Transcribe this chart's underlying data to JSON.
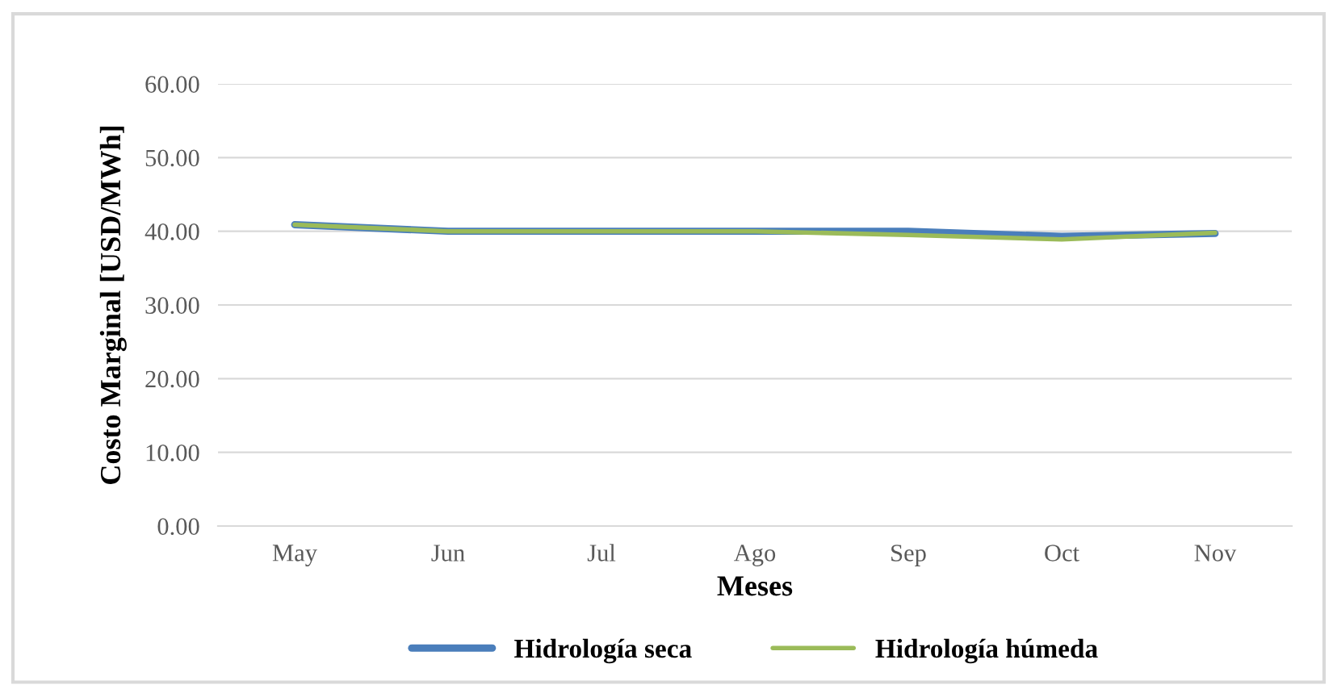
{
  "chart_data": {
    "type": "line",
    "xlabel": "Meses",
    "ylabel": "Costo Marginal [USD/MWh]",
    "categories": [
      "May",
      "Jun",
      "Jul",
      "Ago",
      "Sep",
      "Oct",
      "Nov"
    ],
    "series": [
      {
        "name": "Hidrología seca",
        "color": "#4a7ebb",
        "values": [
          40.9,
          40.0,
          40.0,
          40.0,
          40.0,
          39.3,
          39.7
        ]
      },
      {
        "name": "Hidrología húmeda",
        "color": "#9bbb59",
        "values": [
          40.9,
          40.0,
          40.0,
          40.0,
          39.5,
          38.9,
          39.8
        ]
      }
    ],
    "ylim": [
      0,
      60
    ],
    "yticks": [
      {
        "value": 0,
        "label": "0.00"
      },
      {
        "value": 10,
        "label": "10.00"
      },
      {
        "value": 20,
        "label": "20.00"
      },
      {
        "value": 30,
        "label": "30.00"
      },
      {
        "value": 40,
        "label": "40.00"
      },
      {
        "value": 50,
        "label": "50.00"
      },
      {
        "value": 60,
        "label": "60.00"
      }
    ],
    "grid": "y",
    "legend": "bottom",
    "marker": "none",
    "line_style": "solid"
  }
}
